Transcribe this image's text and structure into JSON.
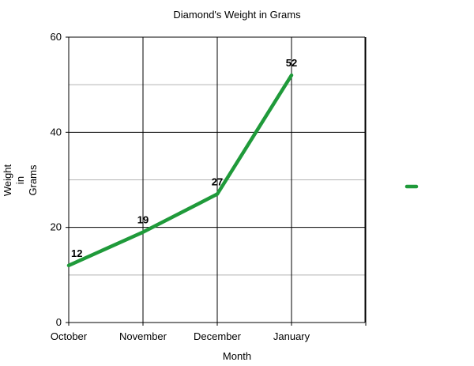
{
  "chart_data": {
    "type": "line",
    "title": "Diamond's Weight in Grams",
    "xlabel": "Month",
    "ylabel": "Weight in Grams",
    "ylabel_lines": [
      "Weight",
      "in",
      "Grams"
    ],
    "categories": [
      "October",
      "November",
      "December",
      "January"
    ],
    "series": [
      {
        "values": [
          12,
          19,
          27,
          52
        ],
        "color": "#1f9a3a"
      }
    ],
    "data_labels": [
      "12",
      "19",
      "27",
      "52"
    ],
    "ylim": [
      0,
      60
    ],
    "yticks": [
      0,
      20,
      40,
      60
    ],
    "y_minor_gridlines": [
      10,
      30,
      50
    ],
    "grid": true,
    "legend": "right",
    "colors": {
      "line": "#1f9a3a",
      "major_grid": "#000000",
      "minor_grid": "#b3b3b3",
      "axis": "#000000"
    }
  }
}
